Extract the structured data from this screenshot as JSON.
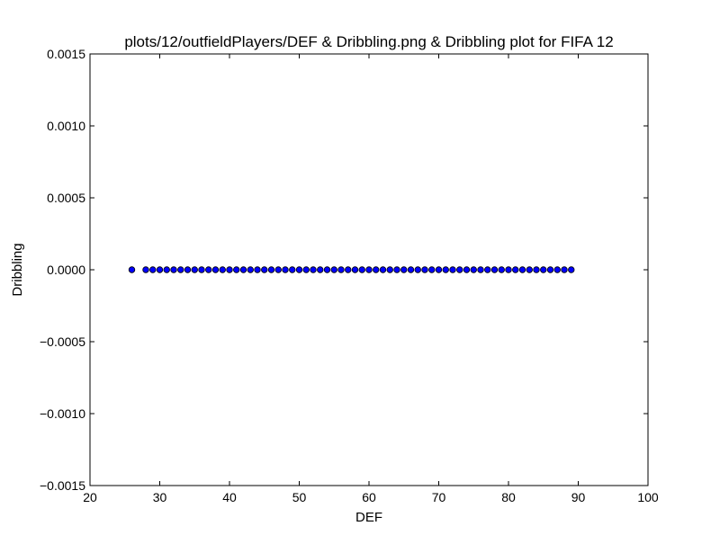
{
  "chart_data": {
    "type": "scatter",
    "title": "plots/12/outfieldPlayers/DEF & Dribbling.png & Dribbling plot for FIFA 12",
    "xlabel": "DEF",
    "ylabel": "Dribbling",
    "xlim": [
      20,
      100
    ],
    "ylim": [
      -0.0015,
      0.0015
    ],
    "x_ticks": [
      "20",
      "30",
      "40",
      "50",
      "60",
      "70",
      "80",
      "90",
      "100"
    ],
    "y_ticks": [
      "0.0015",
      "0.0010",
      "0.0005",
      "0.0000",
      "−0.0005",
      "−0.0010",
      "−0.0015"
    ],
    "grid": false,
    "marker_color": "#0000ff",
    "marker_edge_color": "#000000",
    "x": [
      26,
      28,
      29,
      30,
      31,
      32,
      33,
      34,
      35,
      36,
      37,
      38,
      39,
      40,
      41,
      42,
      43,
      44,
      45,
      46,
      47,
      48,
      49,
      50,
      51,
      52,
      53,
      54,
      55,
      56,
      57,
      58,
      59,
      60,
      61,
      62,
      63,
      64,
      65,
      66,
      67,
      68,
      69,
      70,
      71,
      72,
      73,
      74,
      75,
      76,
      77,
      78,
      79,
      80,
      81,
      82,
      83,
      84,
      85,
      86,
      87,
      88,
      89
    ],
    "y": [
      0,
      0,
      0,
      0,
      0,
      0,
      0,
      0,
      0,
      0,
      0,
      0,
      0,
      0,
      0,
      0,
      0,
      0,
      0,
      0,
      0,
      0,
      0,
      0,
      0,
      0,
      0,
      0,
      0,
      0,
      0,
      0,
      0,
      0,
      0,
      0,
      0,
      0,
      0,
      0,
      0,
      0,
      0,
      0,
      0,
      0,
      0,
      0,
      0,
      0,
      0,
      0,
      0,
      0,
      0,
      0,
      0,
      0,
      0,
      0,
      0,
      0,
      0
    ]
  }
}
